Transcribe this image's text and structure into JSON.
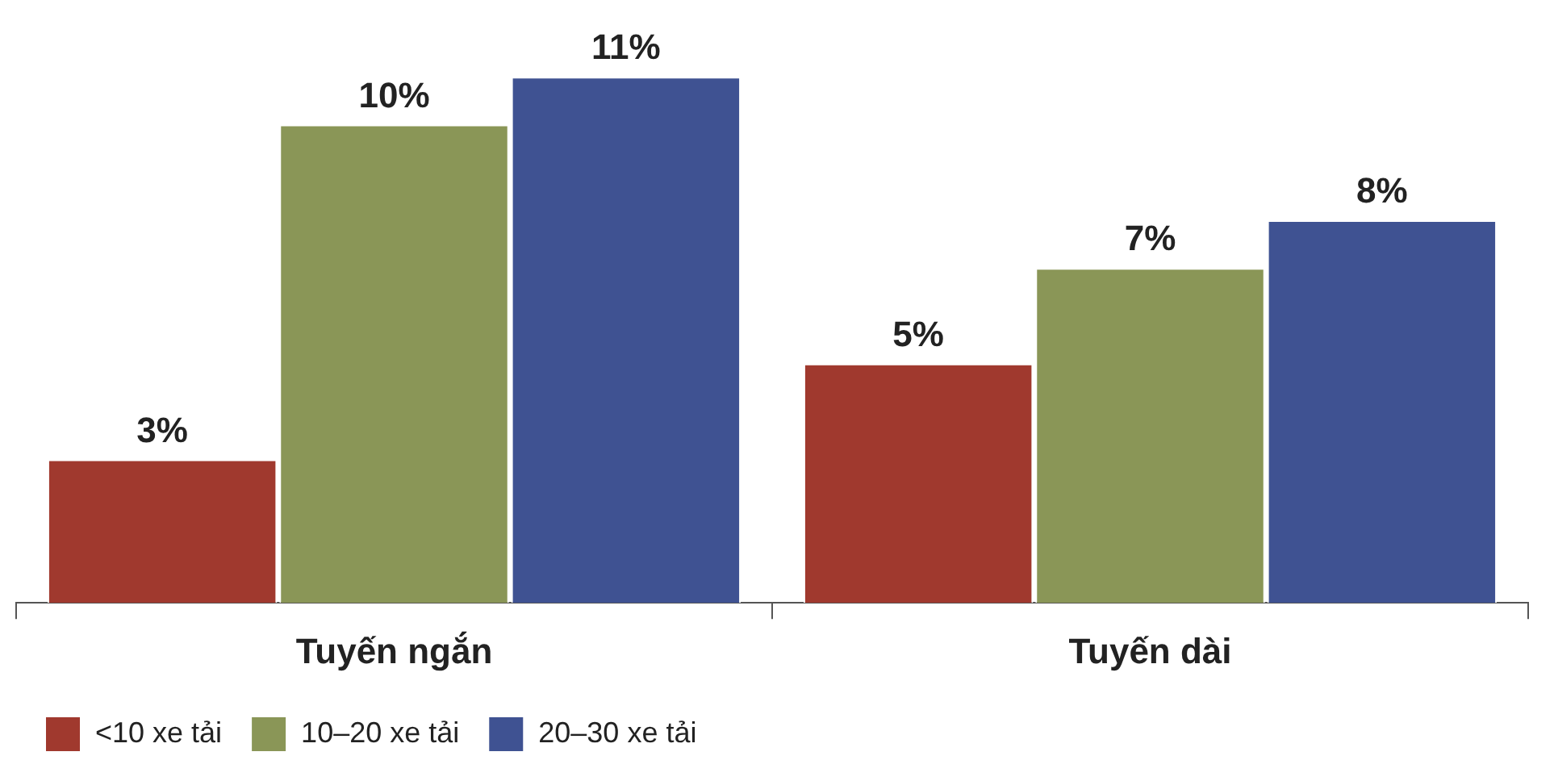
{
  "chart_data": {
    "type": "bar",
    "categories": [
      "Tuyến ngắn",
      "Tuyến dài"
    ],
    "series": [
      {
        "name": "<10 xe tải",
        "color": "#a0392e",
        "values": [
          3,
          5
        ],
        "value_labels": [
          "3%",
          "5%"
        ]
      },
      {
        "name": "10–20 xe tải",
        "color": "#8a9657",
        "values": [
          10,
          7
        ],
        "value_labels": [
          "10%",
          "7%"
        ]
      },
      {
        "name": "20–30 xe tải",
        "color": "#3f5292",
        "values": [
          11,
          8
        ],
        "value_labels": [
          "11%",
          "8%"
        ]
      }
    ],
    "tick_labels": "x",
    "grid": false,
    "legend": "bottom left"
  }
}
